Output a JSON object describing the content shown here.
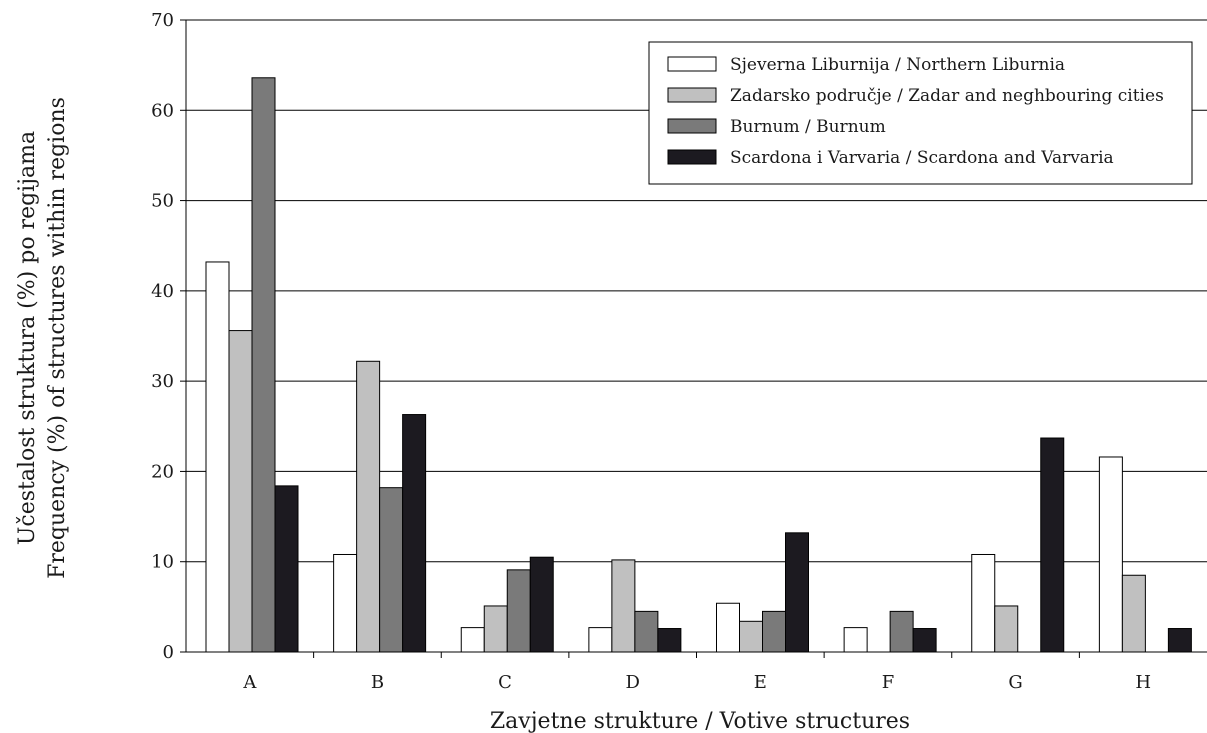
{
  "chart_data": {
    "type": "bar",
    "xlabel": "Zavjetne strukture / Votive structures",
    "ylabel_lines": [
      "Učestalost struktura (%) po regijama",
      "Frequency (%) of structures within regions"
    ],
    "categories": [
      "A",
      "B",
      "C",
      "D",
      "E",
      "F",
      "G",
      "H"
    ],
    "ylim": [
      0,
      70
    ],
    "yticks": [
      0,
      10,
      20,
      30,
      40,
      50,
      60,
      70
    ],
    "grid": "horizontal",
    "legend_position": "top-right",
    "series": [
      {
        "name": "Sjeverna Liburnija / Northern Liburnia",
        "color": "#ffffff",
        "values": [
          43.2,
          10.8,
          2.7,
          2.7,
          5.4,
          2.7,
          10.8,
          21.6
        ]
      },
      {
        "name": "Zadarsko područje / Zadar and neghbouring cities",
        "color": "#c0c0c0",
        "values": [
          35.6,
          32.2,
          5.1,
          10.2,
          3.4,
          0,
          5.1,
          8.5
        ]
      },
      {
        "name": "Burnum / Burnum",
        "color": "#7a7a7a",
        "values": [
          63.6,
          18.2,
          9.1,
          4.5,
          4.5,
          4.5,
          0,
          0
        ]
      },
      {
        "name": "Scardona i Varvaria / Scardona and Varvaria",
        "color": "#1c1a20",
        "values": [
          18.4,
          26.3,
          10.5,
          2.6,
          13.2,
          2.6,
          23.7,
          2.6
        ]
      }
    ]
  }
}
